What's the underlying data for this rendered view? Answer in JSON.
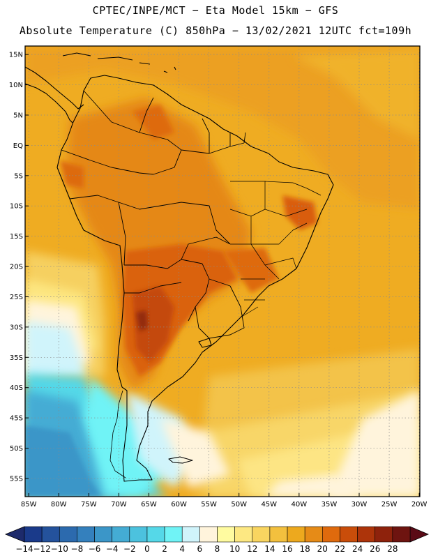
{
  "header": {
    "line1": "CPTEC/INPE/MCT −  Eta Model 15km − GFS",
    "line2": "Absolute Temperature (C) 850hPa − 13/02/2021 12UTC fct=109h"
  },
  "map": {
    "lat_labels": [
      "15N",
      "10N",
      "5N",
      "EQ",
      "5S",
      "10S",
      "15S",
      "20S",
      "25S",
      "30S",
      "35S",
      "40S",
      "45S",
      "50S",
      "55S"
    ],
    "lat_values": [
      15,
      10,
      5,
      0,
      -5,
      -10,
      -15,
      -20,
      -25,
      -30,
      -35,
      -40,
      -45,
      -50,
      -55
    ],
    "lon_labels": [
      "85W",
      "80W",
      "75W",
      "70W",
      "65W",
      "60W",
      "55W",
      "50W",
      "45W",
      "40W",
      "35W",
      "30W",
      "25W",
      "20W"
    ],
    "lon_values": [
      -85,
      -80,
      -75,
      -70,
      -65,
      -60,
      -55,
      -50,
      -45,
      -40,
      -35,
      -30,
      -25,
      -20
    ],
    "extent": {
      "lon_min": -85.6,
      "lon_max": -19.9,
      "lat_min": -58.0,
      "lat_max": 16.4
    }
  },
  "colorbar": {
    "labels": [
      "−14",
      "−12",
      "−10",
      "−8",
      "−6",
      "−4",
      "−2",
      "0",
      "2",
      "4",
      "6",
      "8",
      "10",
      "12",
      "14",
      "16",
      "18",
      "20",
      "22",
      "24",
      "26",
      "28"
    ],
    "colors": [
      "#1a3a8a",
      "#24529c",
      "#2c6aae",
      "#3480bd",
      "#3b96c8",
      "#44acd4",
      "#4cc2de",
      "#55d8e8",
      "#70f3f6",
      "#d0f4fb",
      "#fff4dc",
      "#fffba0",
      "#fde882",
      "#f9d560",
      "#f3c03e",
      "#eda91e",
      "#e68b17",
      "#df6a0d",
      "#c94d0a",
      "#ad340a",
      "#8e220c",
      "#6e1410"
    ],
    "arrow_left": "#1d2a6b",
    "arrow_right": "#5a0a16"
  }
}
